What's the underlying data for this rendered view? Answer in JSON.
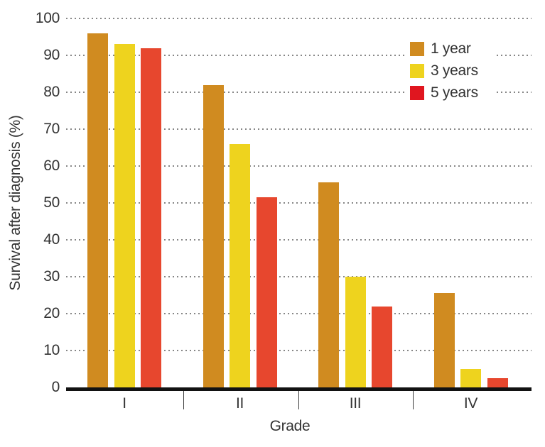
{
  "chart_data": {
    "type": "bar",
    "title": "",
    "xlabel": "Grade",
    "ylabel": "Survival after diagnosis (%)",
    "categories": [
      "I",
      "II",
      "III",
      "IV"
    ],
    "series": [
      {
        "name": "1 year",
        "color": "#d08b20",
        "values": [
          96,
          82,
          55.5,
          25.5
        ]
      },
      {
        "name": "3 years",
        "color": "#eed31e",
        "values": [
          93,
          66,
          30,
          5
        ]
      },
      {
        "name": "5 years",
        "color": "#e7472e",
        "legend_color": "#e0161f",
        "values": [
          92,
          51.5,
          22,
          2.5
        ]
      }
    ],
    "ylim": [
      0,
      100
    ],
    "yticks": [
      0,
      10,
      20,
      30,
      40,
      50,
      60,
      70,
      80,
      90,
      100
    ],
    "grid": "dotted-horizontal",
    "grid_color": "#868686",
    "axis_color": "#121212",
    "legend_position": "top-right"
  }
}
